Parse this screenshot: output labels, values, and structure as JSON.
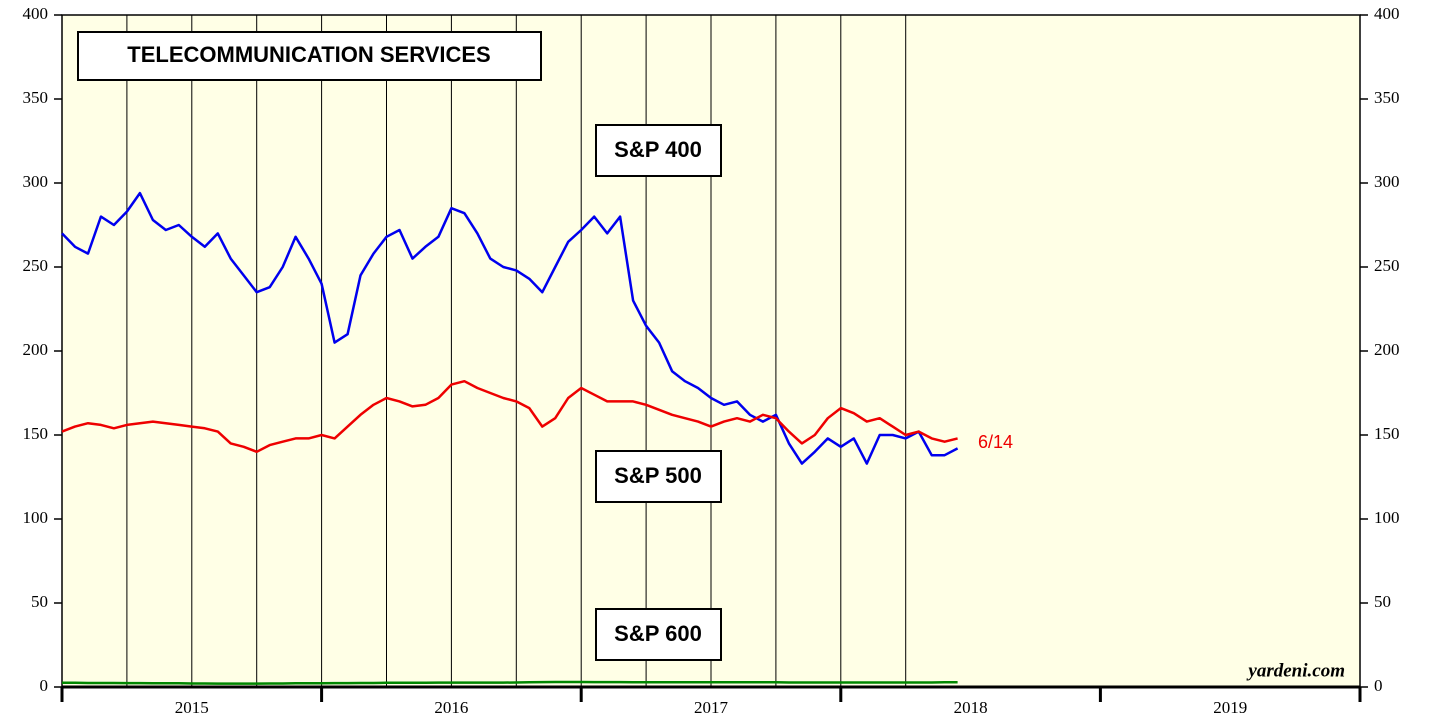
{
  "chart_data": {
    "type": "line",
    "annotations": [
      "TELECOMMUNICATION SERVICES",
      "6/14",
      "yardeni.com"
    ],
    "x": [
      2015.0,
      2015.05,
      2015.1,
      2015.15,
      2015.2,
      2015.25,
      2015.3,
      2015.35,
      2015.4,
      2015.45,
      2015.5,
      2015.55,
      2015.6,
      2015.65,
      2015.7,
      2015.75,
      2015.8,
      2015.85,
      2015.9,
      2015.95,
      2016.0,
      2016.05,
      2016.1,
      2016.15,
      2016.2,
      2016.25,
      2016.3,
      2016.35,
      2016.4,
      2016.45,
      2016.5,
      2016.55,
      2016.6,
      2016.65,
      2016.7,
      2016.75,
      2016.8,
      2016.85,
      2016.9,
      2016.95,
      2017.0,
      2017.05,
      2017.1,
      2017.15,
      2017.2,
      2017.25,
      2017.3,
      2017.35,
      2017.4,
      2017.45,
      2017.5,
      2017.55,
      2017.6,
      2017.65,
      2017.7,
      2017.75,
      2017.8,
      2017.85,
      2017.9,
      2017.95,
      2018.0,
      2018.05,
      2018.1,
      2018.15,
      2018.2,
      2018.25,
      2018.3,
      2018.35,
      2018.4,
      2018.45
    ],
    "series": [
      {
        "name": "S&P 400",
        "color": "#0000ee",
        "values": [
          270,
          262,
          258,
          280,
          275,
          283,
          294,
          278,
          272,
          275,
          268,
          262,
          270,
          255,
          245,
          235,
          238,
          250,
          268,
          255,
          240,
          205,
          210,
          245,
          258,
          268,
          272,
          255,
          262,
          268,
          285,
          282,
          270,
          255,
          250,
          248,
          243,
          235,
          250,
          265,
          272,
          280,
          270,
          280,
          230,
          215,
          205,
          188,
          182,
          178,
          172,
          168,
          170,
          162,
          158,
          162,
          145,
          133,
          140,
          148,
          143,
          148,
          133,
          150,
          150,
          148,
          152,
          138,
          138,
          142
        ]
      },
      {
        "name": "S&P 500",
        "color": "#ee0000",
        "values": [
          152,
          155,
          157,
          156,
          154,
          156,
          157,
          158,
          157,
          156,
          155,
          154,
          152,
          145,
          143,
          140,
          144,
          146,
          148,
          148,
          150,
          148,
          155,
          162,
          168,
          172,
          170,
          167,
          168,
          172,
          180,
          182,
          178,
          175,
          172,
          170,
          166,
          155,
          160,
          172,
          178,
          174,
          170,
          170,
          170,
          168,
          165,
          162,
          160,
          158,
          155,
          158,
          160,
          158,
          162,
          160,
          152,
          145,
          150,
          160,
          166,
          163,
          158,
          160,
          155,
          150,
          152,
          148,
          146,
          148
        ]
      },
      {
        "name": "S&P 600",
        "color": "#008800",
        "values": [
          2.5,
          2.5,
          2.4,
          2.4,
          2.4,
          2.3,
          2.3,
          2.2,
          2.2,
          2.2,
          2.1,
          2.1,
          2.0,
          2.0,
          2.0,
          2.0,
          2.1,
          2.1,
          2.2,
          2.2,
          2.2,
          2.3,
          2.3,
          2.4,
          2.4,
          2.5,
          2.5,
          2.5,
          2.5,
          2.6,
          2.6,
          2.6,
          2.6,
          2.6,
          2.6,
          2.7,
          2.8,
          2.9,
          3.0,
          3.0,
          3.0,
          2.9,
          2.9,
          2.9,
          2.8,
          2.8,
          2.8,
          2.8,
          2.8,
          2.8,
          2.8,
          2.8,
          2.8,
          2.8,
          2.8,
          2.8,
          2.7,
          2.7,
          2.7,
          2.7,
          2.7,
          2.7,
          2.7,
          2.7,
          2.7,
          2.7,
          2.7,
          2.7,
          2.8,
          2.8
        ]
      }
    ],
    "xlim": [
      2015,
      2020
    ],
    "ylim": [
      0,
      400
    ],
    "yticks": [
      0,
      50,
      100,
      150,
      200,
      250,
      300,
      350,
      400
    ],
    "xticks": [
      {
        "value": 2015.5,
        "label": "2015"
      },
      {
        "value": 2016.5,
        "label": "2016"
      },
      {
        "value": 2017.5,
        "label": "2017"
      },
      {
        "value": 2018.5,
        "label": "2018"
      },
      {
        "value": 2019.5,
        "label": "2019"
      }
    ],
    "year_boundaries": [
      2015,
      2016,
      2017,
      2018,
      2019,
      2020
    ],
    "vgrid": [
      2015.25,
      2015.5,
      2015.75,
      2016,
      2016.25,
      2016.5,
      2016.75,
      2017,
      2017.25,
      2017.5,
      2017.75,
      2018,
      2018.25
    ],
    "background": "#ffffe6"
  }
}
